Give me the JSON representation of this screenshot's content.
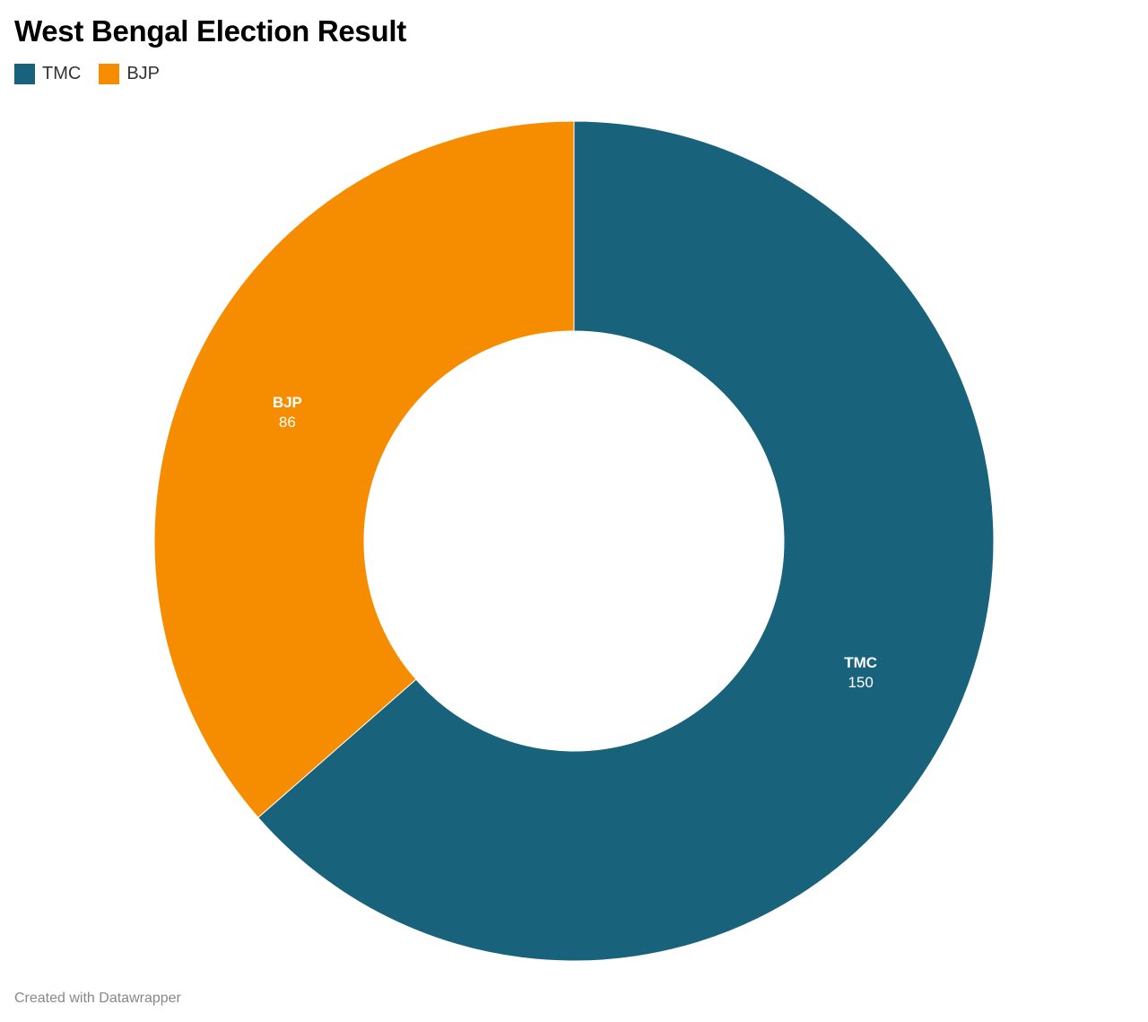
{
  "chart_data": {
    "type": "pie",
    "donut": true,
    "title": "West Bengal Election Result",
    "legend_position": "top-left",
    "slices": [
      {
        "name": "TMC",
        "value": 150,
        "color": "#18627b"
      },
      {
        "name": "BJP",
        "value": 86,
        "color": "#f68d00"
      }
    ],
    "footer": "Created with Datawrapper"
  }
}
